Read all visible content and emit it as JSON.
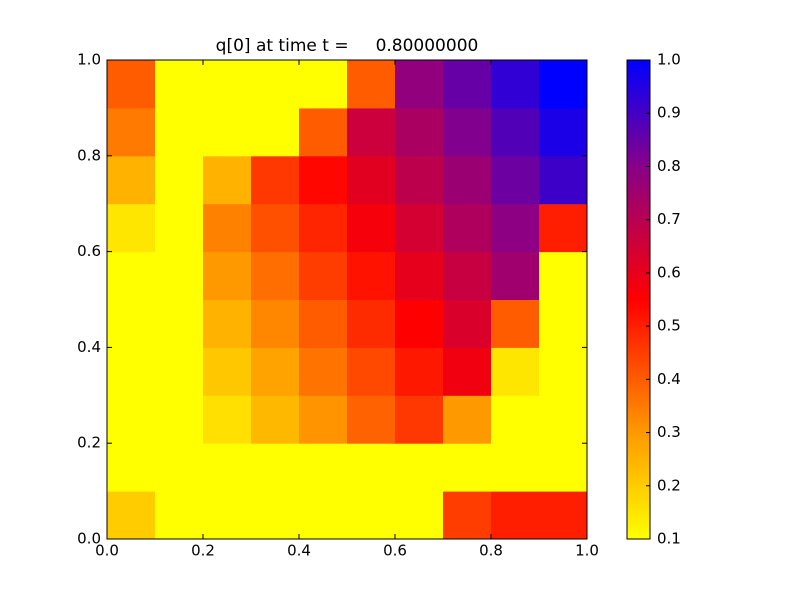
{
  "chart_data": {
    "type": "heatmap",
    "title": "q[0] at time t =     0.80000000",
    "x": [
      0.05,
      0.15,
      0.25,
      0.35,
      0.45,
      0.55,
      0.65,
      0.75,
      0.85,
      0.95
    ],
    "y": [
      0.05,
      0.15,
      0.25,
      0.35,
      0.45,
      0.55,
      0.65,
      0.75,
      0.85,
      0.95
    ],
    "z": [
      [
        0.2,
        0.1,
        0.1,
        0.1,
        0.1,
        0.1,
        0.1,
        0.45,
        0.5,
        0.5
      ],
      [
        0.1,
        0.1,
        0.1,
        0.1,
        0.1,
        0.1,
        0.1,
        0.1,
        0.1,
        0.1
      ],
      [
        0.1,
        0.1,
        0.16,
        0.24,
        0.31,
        0.39,
        0.46,
        0.3,
        0.1,
        0.1
      ],
      [
        0.1,
        0.1,
        0.21,
        0.28,
        0.36,
        0.43,
        0.51,
        0.58,
        0.15,
        0.1
      ],
      [
        0.1,
        0.1,
        0.25,
        0.33,
        0.4,
        0.48,
        0.55,
        0.63,
        0.4,
        0.1
      ],
      [
        0.1,
        0.1,
        0.3,
        0.37,
        0.45,
        0.52,
        0.6,
        0.67,
        0.75,
        0.1
      ],
      [
        0.15,
        0.1,
        0.34,
        0.42,
        0.49,
        0.57,
        0.64,
        0.72,
        0.79,
        0.5
      ],
      [
        0.25,
        0.1,
        0.25,
        0.46,
        0.54,
        0.61,
        0.69,
        0.76,
        0.84,
        0.91
      ],
      [
        0.35,
        0.1,
        0.1,
        0.1,
        0.4,
        0.66,
        0.73,
        0.81,
        0.88,
        0.96
      ],
      [
        0.4,
        0.1,
        0.1,
        0.1,
        0.1,
        0.4,
        0.78,
        0.85,
        0.93,
        1.0
      ]
    ],
    "xlim": [
      0,
      1
    ],
    "ylim": [
      0,
      1
    ],
    "xticks": [
      {
        "value": 0,
        "label": "0.0"
      },
      0.2,
      0.4,
      0.6,
      0.8,
      {
        "value": 1,
        "label": "1.0"
      }
    ],
    "yticks": [
      {
        "value": 0,
        "label": "0.0"
      },
      0.2,
      0.4,
      0.6,
      0.8,
      {
        "value": 1,
        "label": "1.0"
      }
    ],
    "clim": [
      0.1,
      1
    ],
    "cticks": [
      0.1,
      0.2,
      0.3,
      0.4,
      0.5,
      0.6,
      0.7,
      0.8,
      0.9,
      {
        "value": 1,
        "label": "1.0"
      }
    ],
    "colormap": [
      {
        "value": 0.1,
        "color": "#ffff00"
      },
      {
        "value": 0.3,
        "color": "#ff9900"
      },
      {
        "value": 0.55,
        "color": "#ff0000"
      },
      {
        "value": 0.8,
        "color": "#880088"
      },
      {
        "value": 1,
        "color": "#0000ff"
      }
    ]
  }
}
